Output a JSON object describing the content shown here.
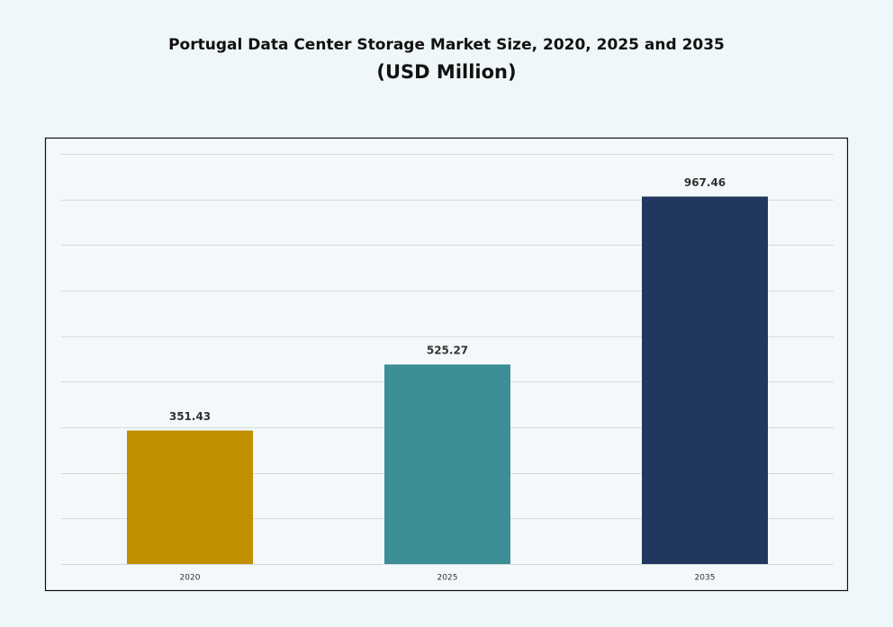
{
  "chart_data": {
    "type": "bar",
    "title": "Portugal Data Center Storage Market Size, 2020, 2025 and 2035",
    "subtitle": "(USD Million)",
    "categories": [
      "2020",
      "2025",
      "2035"
    ],
    "values": [
      351.43,
      525.27,
      967.46
    ],
    "colors": [
      "#bf8f00",
      "#3c8e96",
      "#22375f"
    ],
    "ylim": [
      0,
      1080
    ],
    "yticks": [
      0,
      120,
      240,
      360,
      480,
      600,
      720,
      840,
      960,
      1080
    ],
    "grid": true
  }
}
